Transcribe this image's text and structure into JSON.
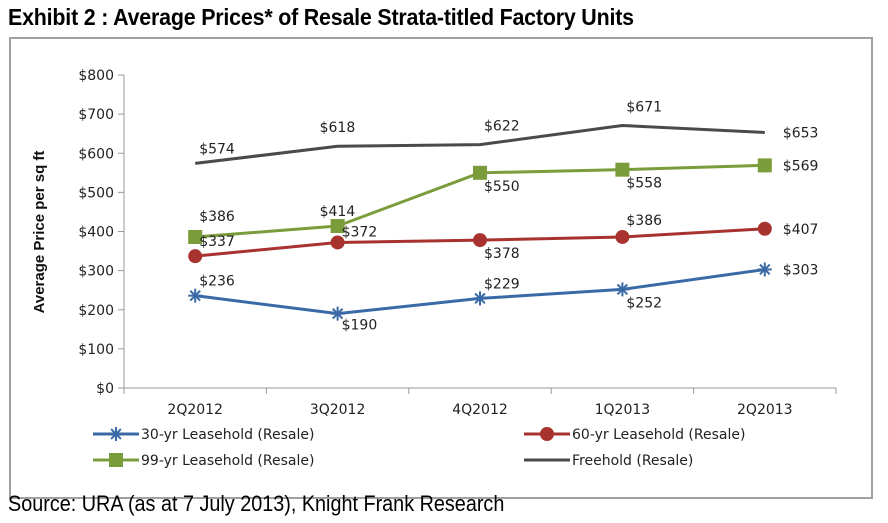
{
  "title": "Exhibit 2 : Average Prices* of Resale Strata-titled Factory Units",
  "source": "Source: URA (as at 7 July 2013), Knight Frank Research",
  "chart_data": {
    "type": "line",
    "title": "Exhibit 2 : Average Prices* of Resale Strata-titled Factory Units",
    "xlabel": "",
    "ylabel": "Average Price per sq ft",
    "ylim": [
      0,
      800
    ],
    "yticks": [
      0,
      100,
      200,
      300,
      400,
      500,
      600,
      700,
      800
    ],
    "ytick_labels": [
      "$0",
      "$100",
      "$200",
      "$300",
      "$400",
      "$500",
      "$600",
      "$700",
      "$800"
    ],
    "categories": [
      "2Q2012",
      "3Q2012",
      "4Q2012",
      "1Q2013",
      "2Q2013"
    ],
    "grid": false,
    "legend_position": "bottom",
    "series": [
      {
        "name": "30-yr Leasehold (Resale)",
        "color": "#3a6aa5",
        "marker": "asterisk",
        "values": [
          236,
          190,
          229,
          252,
          303
        ],
        "labels": [
          "$236",
          "$190",
          "$229",
          "$252",
          "$303"
        ]
      },
      {
        "name": "60-yr Leasehold (Resale)",
        "color": "#a8322e",
        "marker": "circle",
        "values": [
          337,
          372,
          378,
          386,
          407
        ],
        "labels": [
          "$337",
          "$372",
          "$378",
          "$386",
          "$407"
        ]
      },
      {
        "name": "99-yr Leasehold (Resale)",
        "color": "#7a9c3a",
        "marker": "square",
        "values": [
          386,
          414,
          550,
          558,
          569
        ],
        "labels": [
          "$386",
          "$414",
          "$550",
          "$558",
          "$569"
        ]
      },
      {
        "name": "Freehold (Resale)",
        "color": "#4a4a4a",
        "marker": "none",
        "values": [
          574,
          618,
          622,
          671,
          653
        ],
        "labels": [
          "$574",
          "$618",
          "$622",
          "$671",
          "$653"
        ]
      }
    ]
  }
}
